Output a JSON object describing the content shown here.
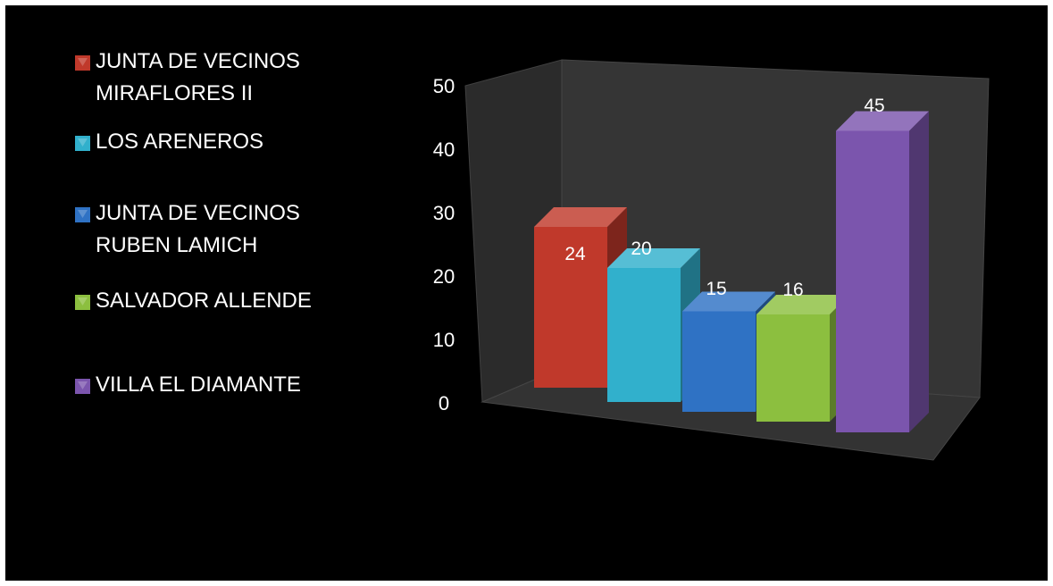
{
  "chart_data": {
    "type": "bar",
    "title": "",
    "xlabel": "",
    "ylabel": "",
    "ylim": [
      0,
      50
    ],
    "yticks": [
      "0",
      "10",
      "20",
      "30",
      "40",
      "50"
    ],
    "categories": [
      "JUNTA DE VECINOS MIRAFLORES II",
      "LOS ARENEROS",
      "JUNTA DE VECINOS RUBEN LAMICH",
      "SALVADOR ALLENDE",
      "VILLA EL DIAMANTE"
    ],
    "series": [
      {
        "name": "JUNTA DE VECINOS MIRAFLORES II",
        "value": 24,
        "label": "24",
        "color": "#c0392b"
      },
      {
        "name": "LOS ARENEROS",
        "value": 20,
        "label": "20",
        "color": "#31b0cc"
      },
      {
        "name": "JUNTA DE VECINOS RUBEN LAMICH",
        "value": 15,
        "label": "15",
        "color": "#2f72c4"
      },
      {
        "name": "SALVADOR ALLENDE",
        "value": 16,
        "label": "16",
        "color": "#8cbf3f"
      },
      {
        "name": "VILLA EL DIAMANTE",
        "value": 45,
        "label": "45",
        "color": "#7b55ad"
      }
    ],
    "legend_position": "left",
    "grid": false,
    "style": "3d-column"
  }
}
